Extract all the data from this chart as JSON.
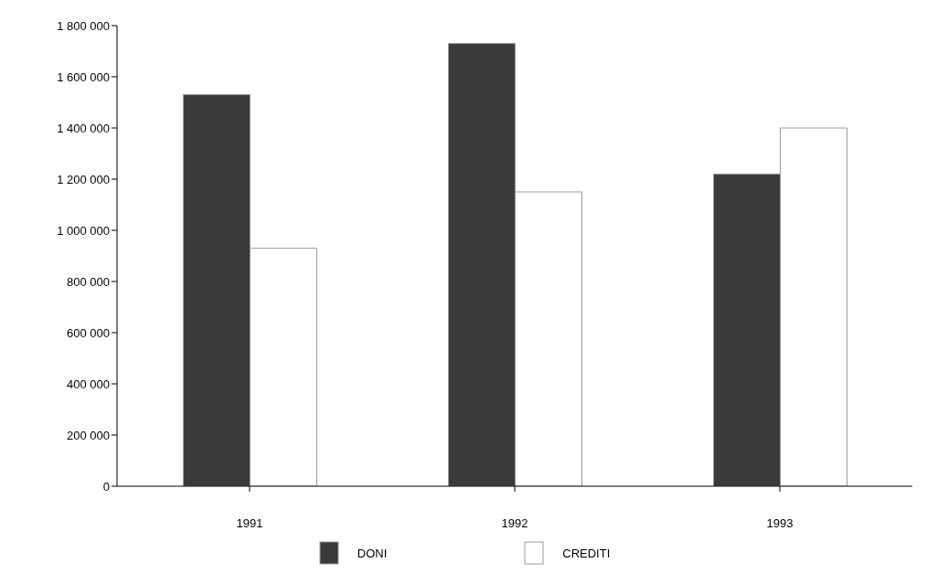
{
  "chart_data": {
    "type": "bar",
    "categories": [
      "1991",
      "1992",
      "1993"
    ],
    "series": [
      {
        "name": "DONI",
        "color": "#3a3a3a",
        "values": [
          1530000,
          1730000,
          1220000
        ]
      },
      {
        "name": "CREDITI",
        "color": "#ffffff",
        "values": [
          930000,
          1150000,
          1400000
        ]
      }
    ],
    "ylim": [
      0,
      1800000
    ],
    "yticks": [
      {
        "value": 0,
        "label": "0"
      },
      {
        "value": 200000,
        "label": "200 000"
      },
      {
        "value": 400000,
        "label": "400 000"
      },
      {
        "value": 600000,
        "label": "600 000"
      },
      {
        "value": 800000,
        "label": "800 000"
      },
      {
        "value": 1000000,
        "label": "1 000 000"
      },
      {
        "value": 1200000,
        "label": "1 200 000"
      },
      {
        "value": 1400000,
        "label": "1 400 000"
      },
      {
        "value": 1600000,
        "label": "1 600 000"
      },
      {
        "value": 1800000,
        "label": "1 800 000"
      }
    ],
    "grid": false,
    "legend": "bottom"
  }
}
